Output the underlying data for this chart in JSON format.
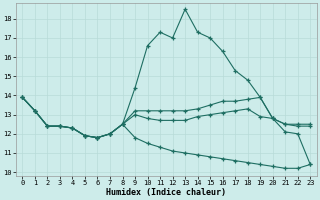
{
  "xlabel": "Humidex (Indice chaleur)",
  "xlim": [
    -0.5,
    23.5
  ],
  "ylim": [
    9.8,
    18.8
  ],
  "yticks": [
    10,
    11,
    12,
    13,
    14,
    15,
    16,
    17,
    18
  ],
  "xticks": [
    0,
    1,
    2,
    3,
    4,
    5,
    6,
    7,
    8,
    9,
    10,
    11,
    12,
    13,
    14,
    15,
    16,
    17,
    18,
    19,
    20,
    21,
    22,
    23
  ],
  "background_color": "#cdecea",
  "grid_color": "#b8dbd8",
  "line_color": "#1e6e62",
  "line1_y": [
    13.9,
    13.2,
    12.4,
    12.4,
    12.3,
    11.9,
    11.8,
    12.0,
    12.5,
    14.4,
    16.6,
    17.3,
    17.0,
    18.5,
    17.3,
    17.0,
    16.3,
    15.3,
    14.8,
    13.9,
    12.8,
    12.1,
    12.0,
    10.4
  ],
  "line2_y": [
    13.9,
    13.2,
    12.4,
    12.4,
    12.3,
    11.9,
    11.8,
    12.0,
    12.5,
    13.2,
    13.2,
    13.2,
    13.2,
    13.2,
    13.3,
    13.5,
    13.7,
    13.7,
    13.8,
    13.9,
    12.8,
    12.5,
    12.5,
    12.5
  ],
  "line3_y": [
    13.9,
    13.2,
    12.4,
    12.4,
    12.3,
    11.9,
    11.8,
    12.0,
    12.5,
    13.0,
    12.8,
    12.7,
    12.7,
    12.7,
    12.9,
    13.0,
    13.1,
    13.2,
    13.3,
    12.9,
    12.8,
    12.5,
    12.4,
    12.4
  ],
  "line4_y": [
    13.9,
    13.2,
    12.4,
    12.4,
    12.3,
    11.9,
    11.8,
    12.0,
    12.5,
    11.8,
    11.5,
    11.3,
    11.1,
    11.0,
    10.9,
    10.8,
    10.7,
    10.6,
    10.5,
    10.4,
    10.3,
    10.2,
    10.2,
    10.4
  ]
}
